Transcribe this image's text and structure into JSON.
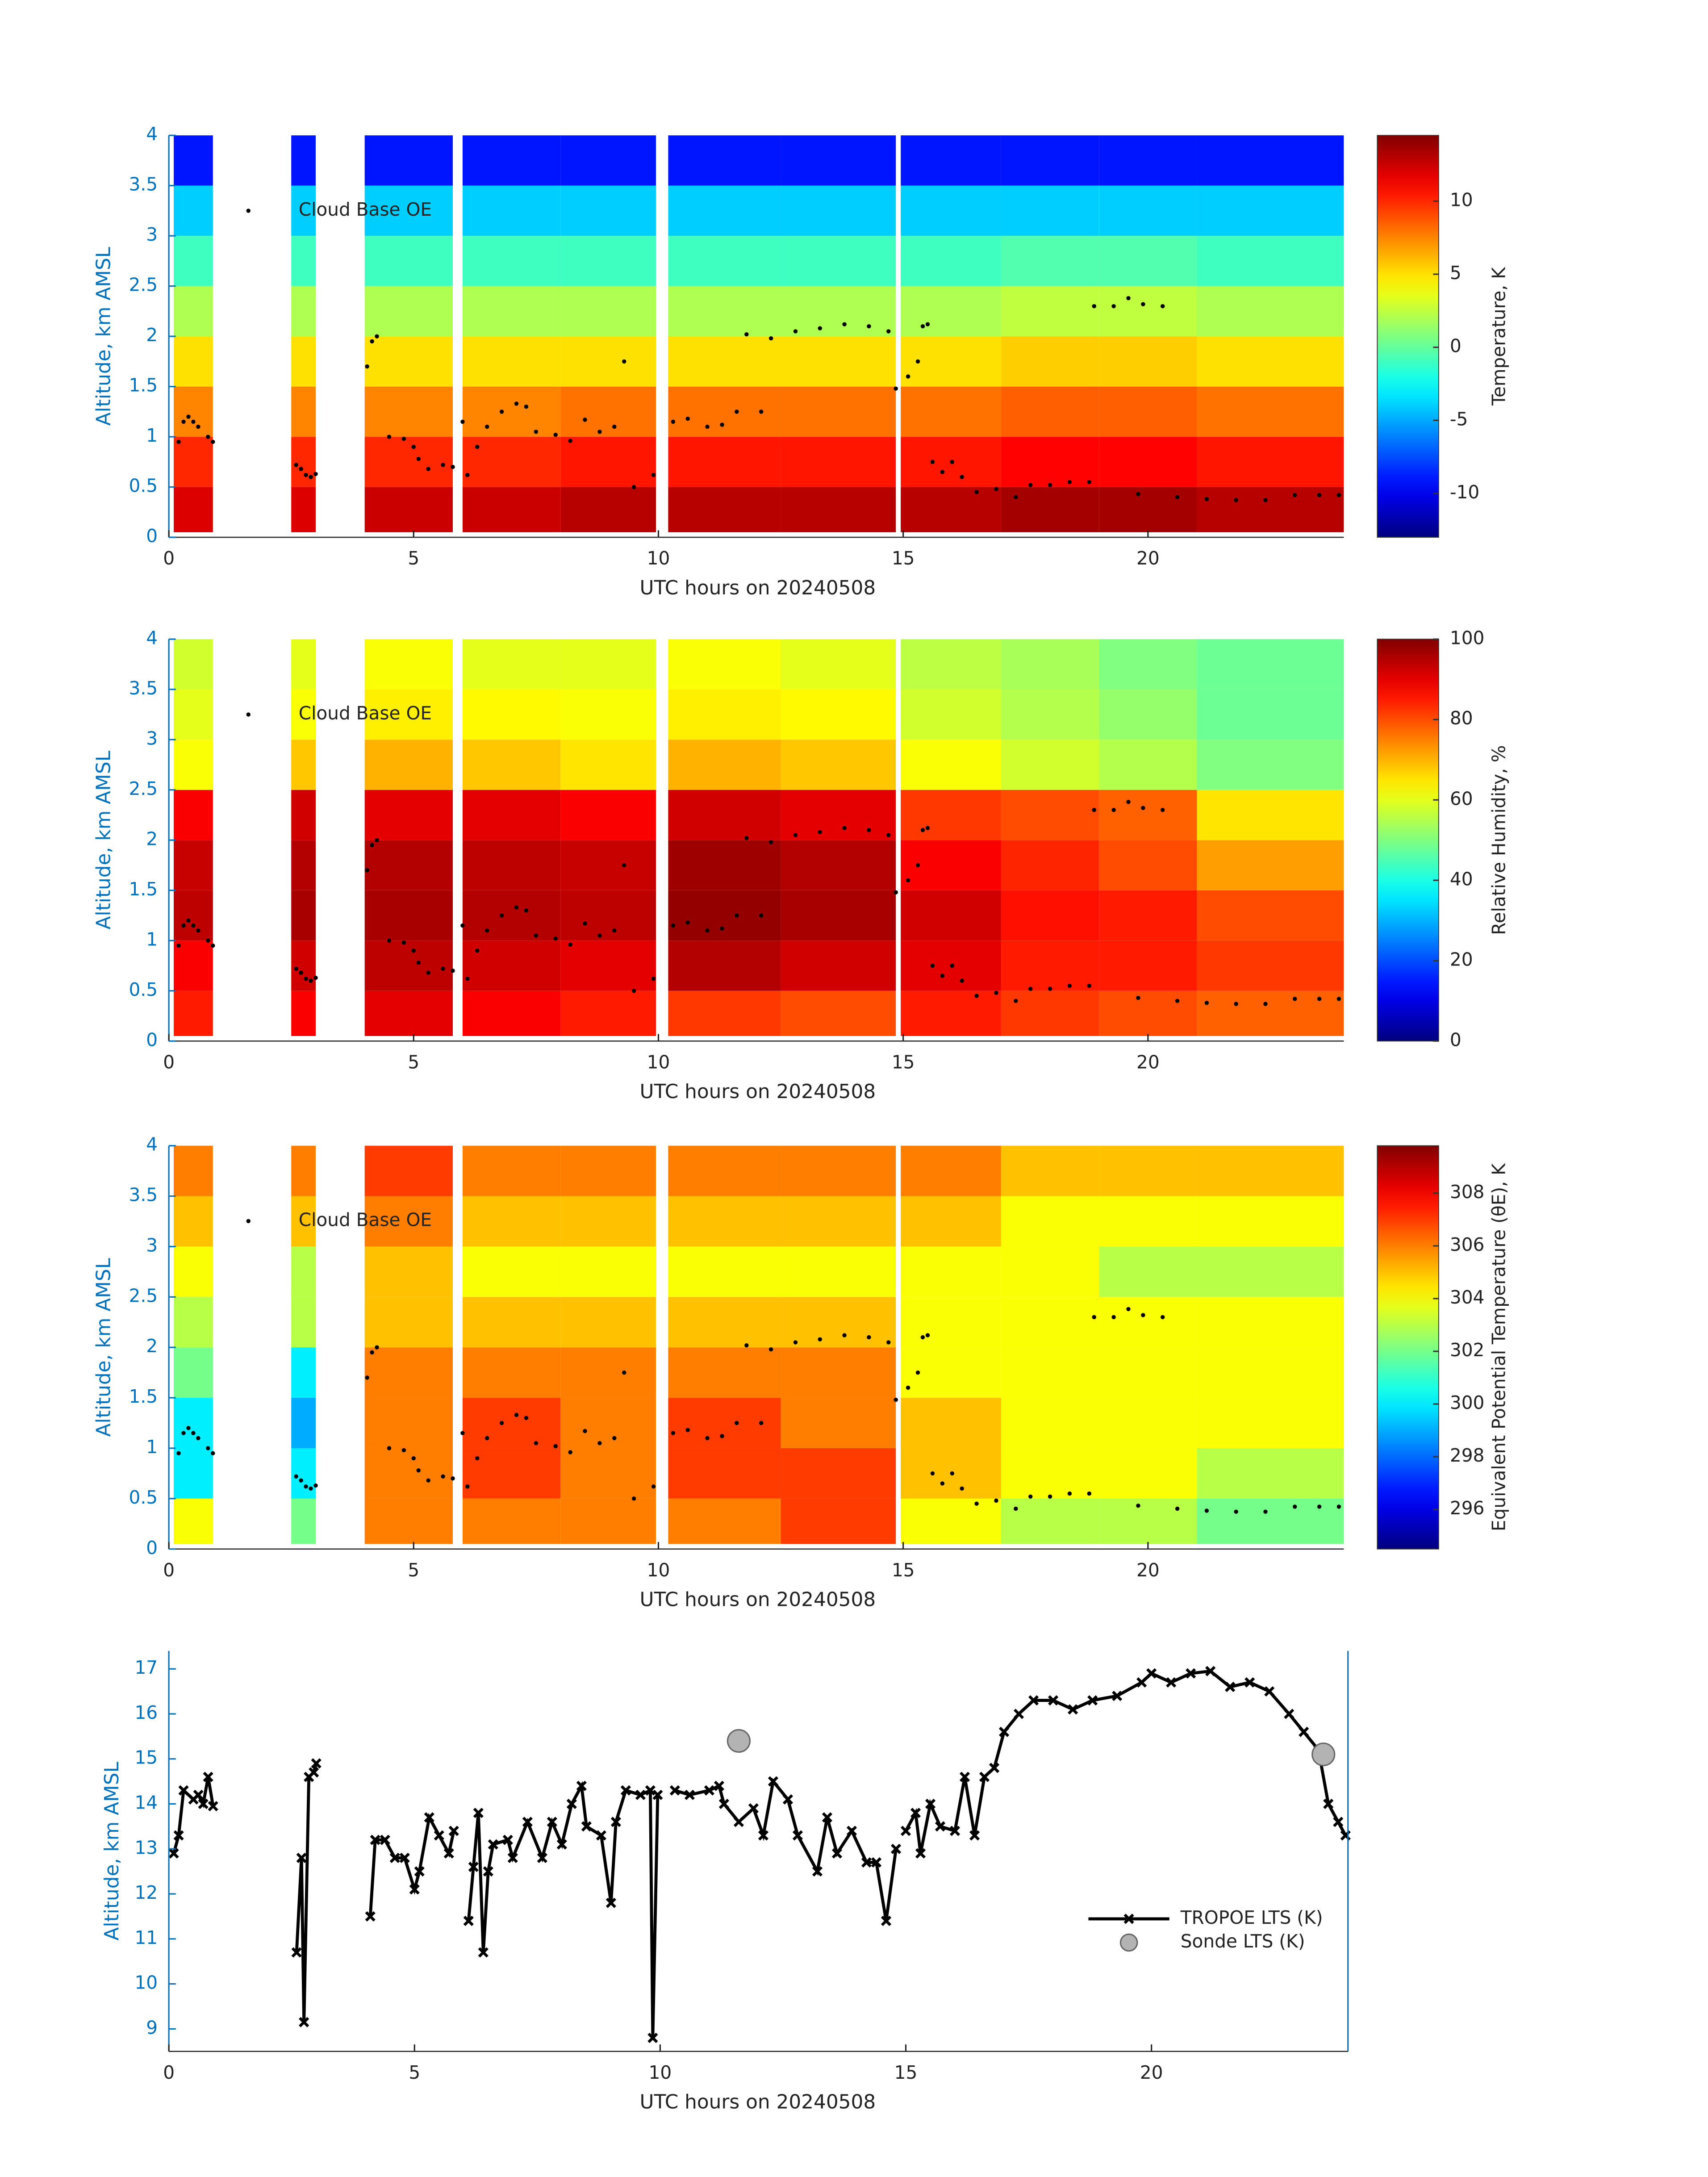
{
  "chart_data": [
    {
      "type": "heatmap",
      "xlabel": "UTC hours on 20240508",
      "ylabel": "Altitude, km AMSL",
      "colorbar_label": "Temperature, K",
      "xlim": [
        0,
        24
      ],
      "xticks": [
        0,
        5,
        10,
        15,
        20
      ],
      "ylim": [
        0,
        4
      ],
      "yticks": [
        0,
        0.5,
        1,
        1.5,
        2,
        2.5,
        3,
        3.5,
        4
      ],
      "clim": [
        -13,
        14.5
      ],
      "cticks": [
        -10,
        -5,
        0,
        5,
        10
      ],
      "x_edges": [
        0.1,
        0.9,
        2.5,
        3.0,
        4.0,
        5.8,
        6.0,
        8.0,
        9.95,
        10.2,
        12.5,
        14.85,
        14.95,
        17,
        19,
        21,
        24
      ],
      "y_edges": [
        0.05,
        0.5,
        1,
        1.5,
        2,
        2.5,
        3,
        3.5,
        4
      ],
      "z": [
        [
          12,
          null,
          12,
          null,
          12.5,
          null,
          12.5,
          13,
          null,
          13,
          13,
          null,
          13,
          13.5,
          13.5,
          13
        ],
        [
          10,
          null,
          10,
          null,
          10,
          null,
          10,
          10.5,
          null,
          10.5,
          10.5,
          null,
          10.5,
          11,
          11,
          10.5
        ],
        [
          7.5,
          null,
          7.5,
          null,
          7.5,
          null,
          7.5,
          8,
          null,
          8,
          8,
          null,
          8,
          8.5,
          8.5,
          8
        ],
        [
          5,
          null,
          5,
          null,
          5,
          null,
          5,
          5,
          null,
          5,
          5,
          null,
          5,
          5.5,
          5.5,
          5
        ],
        [
          2,
          null,
          2,
          null,
          2,
          null,
          2,
          2,
          null,
          2,
          2,
          null,
          2,
          2.5,
          2.5,
          2
        ],
        [
          -1,
          null,
          -1,
          null,
          -1,
          null,
          -1,
          -1,
          null,
          -1,
          -1,
          null,
          -1,
          -0.5,
          -0.5,
          -1
        ],
        [
          -4,
          null,
          -4,
          null,
          -4,
          null,
          -4,
          -4,
          null,
          -4,
          -4,
          null,
          -4,
          -4,
          -4,
          -4
        ],
        [
          -9,
          null,
          -9,
          null,
          -9,
          null,
          -9,
          -9,
          null,
          -9,
          -9,
          null,
          -9,
          -9,
          -9,
          -9
        ]
      ]
    },
    {
      "type": "heatmap",
      "xlabel": "UTC hours on 20240508",
      "ylabel": "Altitude, km AMSL",
      "colorbar_label": "Relative Humidity, %",
      "xlim": [
        0,
        24
      ],
      "xticks": [
        0,
        5,
        10,
        15,
        20
      ],
      "ylim": [
        0,
        4
      ],
      "yticks": [
        0,
        0.5,
        1,
        1.5,
        2,
        2.5,
        3,
        3.5,
        4
      ],
      "clim": [
        0,
        100
      ],
      "cticks": [
        0,
        20,
        40,
        60,
        80,
        100
      ],
      "x_edges": [
        0.1,
        0.9,
        2.5,
        3.0,
        4.0,
        5.8,
        6.0,
        8.0,
        9.95,
        10.2,
        12.5,
        14.85,
        14.95,
        17,
        19,
        21,
        24
      ],
      "y_edges": [
        0.05,
        0.5,
        1,
        1.5,
        2,
        2.5,
        3,
        3.5,
        4
      ],
      "z": [
        [
          85,
          null,
          88,
          null,
          90,
          null,
          88,
          85,
          null,
          82,
          80,
          null,
          85,
          82,
          80,
          78
        ],
        [
          88,
          null,
          92,
          null,
          94,
          null,
          92,
          90,
          null,
          95,
          92,
          null,
          90,
          85,
          85,
          82
        ],
        [
          94,
          null,
          96,
          null,
          96,
          null,
          95,
          94,
          null,
          98,
          96,
          null,
          92,
          86,
          85,
          80
        ],
        [
          93,
          null,
          95,
          null,
          95,
          null,
          94,
          93,
          null,
          97,
          95,
          null,
          88,
          84,
          80,
          72
        ],
        [
          88,
          null,
          92,
          null,
          90,
          null,
          90,
          88,
          null,
          92,
          90,
          null,
          82,
          80,
          78,
          65
        ],
        [
          62,
          null,
          68,
          null,
          70,
          null,
          68,
          65,
          null,
          70,
          68,
          null,
          62,
          58,
          55,
          50
        ],
        [
          60,
          null,
          62,
          null,
          64,
          null,
          63,
          62,
          null,
          64,
          63,
          null,
          58,
          55,
          52,
          48
        ],
        [
          58,
          null,
          60,
          null,
          62,
          null,
          60,
          60,
          null,
          62,
          60,
          null,
          56,
          54,
          50,
          48
        ]
      ]
    },
    {
      "type": "heatmap",
      "xlabel": "UTC hours on 20240508",
      "ylabel": "Altitude, km AMSL",
      "colorbar_label": "Equivalent Potential Temperature (θE), K",
      "xlim": [
        0,
        24
      ],
      "xticks": [
        0,
        5,
        10,
        15,
        20
      ],
      "ylim": [
        0,
        4
      ],
      "yticks": [
        0,
        0.5,
        1,
        1.5,
        2,
        2.5,
        3,
        3.5,
        4
      ],
      "clim": [
        294.5,
        309.8
      ],
      "cticks": [
        296,
        298,
        300,
        302,
        304,
        306,
        308
      ],
      "x_edges": [
        0.1,
        0.9,
        2.5,
        3.0,
        4.0,
        5.8,
        6.0,
        8.0,
        9.95,
        10.2,
        12.5,
        14.85,
        14.95,
        17,
        19,
        21,
        24
      ],
      "y_edges": [
        0.05,
        0.5,
        1,
        1.5,
        2,
        2.5,
        3,
        3.5,
        4
      ],
      "z": [
        [
          304,
          null,
          302,
          null,
          306,
          null,
          306,
          306,
          null,
          306,
          307,
          null,
          304,
          303,
          303,
          302
        ],
        [
          300,
          null,
          300,
          null,
          306,
          null,
          307,
          306,
          null,
          307,
          307,
          null,
          305,
          304,
          304,
          303
        ],
        [
          300,
          null,
          299,
          null,
          306,
          null,
          307,
          306,
          null,
          307,
          306,
          null,
          305,
          304,
          304,
          304
        ],
        [
          302,
          null,
          300,
          null,
          306,
          null,
          306,
          306,
          null,
          306,
          306,
          null,
          304,
          304,
          304,
          304
        ],
        [
          303,
          null,
          303,
          null,
          305,
          null,
          305,
          305,
          null,
          305,
          305,
          null,
          304,
          304,
          304,
          304
        ],
        [
          304,
          null,
          303,
          null,
          305,
          null,
          304,
          304,
          null,
          304,
          304,
          null,
          304,
          304,
          303,
          303
        ],
        [
          305,
          null,
          305,
          null,
          306,
          null,
          305,
          305,
          null,
          305,
          305,
          null,
          305,
          304,
          304,
          304
        ],
        [
          306,
          null,
          306,
          null,
          307,
          null,
          306,
          306,
          null,
          306,
          306,
          null,
          306,
          305,
          305,
          305
        ]
      ]
    },
    {
      "type": "line",
      "xlabel": "UTC hours on 20240508",
      "ylabel": "Altitude, km AMSL",
      "legend": "southeast",
      "xlim": [
        0,
        24
      ],
      "xticks": [
        0,
        5,
        10,
        15,
        20
      ],
      "ylim": [
        8.5,
        17.4
      ],
      "yticks": [
        9,
        10,
        11,
        12,
        13,
        14,
        15,
        16,
        17
      ],
      "series": [
        {
          "name": "TROPOE LTS (K)",
          "color": "#000000",
          "x": [
            0.1,
            0.2,
            0.3,
            0.5,
            0.6,
            0.7,
            0.8,
            0.9,
            null,
            2.6,
            2.7,
            2.75,
            2.85,
            2.95,
            3.0,
            null,
            4.1,
            4.2,
            4.4,
            4.6,
            4.8,
            5.0,
            5.1,
            5.3,
            5.5,
            5.7,
            5.8,
            null,
            6.1,
            6.2,
            6.3,
            6.4,
            6.5,
            6.6,
            6.9,
            7.0,
            7.3,
            7.6,
            7.8,
            8.0,
            8.2,
            8.4,
            8.5,
            8.8,
            9.0,
            9.1,
            9.3,
            9.6,
            9.8,
            9.85,
            9.95,
            null,
            10.3,
            10.6,
            11.0,
            11.2,
            11.3,
            11.6,
            11.9,
            12.1,
            12.3,
            12.6,
            12.8,
            13.2,
            13.4,
            13.6,
            13.9,
            14.2,
            14.4,
            14.6,
            14.8,
            null,
            15.0,
            15.2,
            15.3,
            15.5,
            15.7,
            16.0,
            16.2,
            16.4,
            16.6,
            16.8,
            17.0,
            17.3,
            17.6,
            18.0,
            18.4,
            18.8,
            19.3,
            19.8,
            20.0,
            20.4,
            20.8,
            21.2,
            21.6,
            22.0,
            22.4,
            22.8,
            23.1,
            23.4,
            23.6,
            23.8,
            23.95
          ],
          "values": [
            12.9,
            13.3,
            14.3,
            14.1,
            14.2,
            14.0,
            14.6,
            13.95,
            null,
            10.7,
            12.8,
            9.15,
            14.6,
            14.7,
            14.9,
            null,
            11.5,
            13.2,
            13.2,
            12.8,
            12.8,
            12.1,
            12.5,
            13.7,
            13.3,
            12.9,
            13.4,
            null,
            11.4,
            12.6,
            13.8,
            10.7,
            12.5,
            13.1,
            13.2,
            12.8,
            13.6,
            12.8,
            13.6,
            13.1,
            14.0,
            14.4,
            13.5,
            13.3,
            11.8,
            13.6,
            14.3,
            14.2,
            14.3,
            8.8,
            14.2,
            null,
            14.3,
            14.2,
            14.3,
            14.4,
            14.0,
            13.6,
            13.9,
            13.3,
            14.5,
            14.1,
            13.3,
            12.5,
            13.7,
            12.9,
            13.4,
            12.7,
            12.7,
            11.4,
            13.0,
            null,
            13.4,
            13.8,
            12.9,
            14.0,
            13.5,
            13.4,
            14.6,
            13.3,
            14.6,
            14.8,
            15.6,
            16.0,
            16.3,
            16.3,
            16.1,
            16.3,
            16.4,
            16.7,
            16.9,
            16.7,
            16.9,
            16.95,
            16.6,
            16.7,
            16.5,
            16.0,
            15.6,
            15.2,
            14.0,
            13.6,
            13.3
          ]
        },
        {
          "name": "Sonde LTS (K)",
          "color": "#b3b3b3",
          "x": [
            11.6,
            23.5
          ],
          "values": [
            15.4,
            15.1
          ]
        }
      ]
    }
  ],
  "cloud_base": {
    "name": "Cloud Base OE",
    "x": [
      0.2,
      0.3,
      0.4,
      0.5,
      0.6,
      0.8,
      0.9,
      2.6,
      2.7,
      2.8,
      2.9,
      3.0,
      4.05,
      4.15,
      4.25,
      4.5,
      4.8,
      5.0,
      5.1,
      5.3,
      5.6,
      5.8,
      6.0,
      6.1,
      6.3,
      6.5,
      6.8,
      7.1,
      7.3,
      7.5,
      7.9,
      8.2,
      8.5,
      8.8,
      9.1,
      9.3,
      9.5,
      9.9,
      10.3,
      10.6,
      11.0,
      11.3,
      11.6,
      11.8,
      12.1,
      12.3,
      12.8,
      13.3,
      13.8,
      14.3,
      14.7,
      14.85,
      15.1,
      15.3,
      15.4,
      15.5,
      15.6,
      15.8,
      16.0,
      16.2,
      16.5,
      16.9,
      17.3,
      17.6,
      18.0,
      18.4,
      18.8,
      18.9,
      19.3,
      19.6,
      19.9,
      20.3,
      19.8,
      20.6,
      21.2,
      21.8,
      22.4,
      23.0,
      23.5,
      23.9
    ],
    "y": [
      0.95,
      1.15,
      1.2,
      1.15,
      1.1,
      1.0,
      0.95,
      0.72,
      0.68,
      0.62,
      0.6,
      0.63,
      1.7,
      1.95,
      2.0,
      1.0,
      0.98,
      0.9,
      0.78,
      0.68,
      0.72,
      0.7,
      1.15,
      0.62,
      0.9,
      1.1,
      1.25,
      1.33,
      1.3,
      1.05,
      1.02,
      0.96,
      1.17,
      1.05,
      1.1,
      1.75,
      0.5,
      0.62,
      1.15,
      1.18,
      1.1,
      1.12,
      1.25,
      2.02,
      1.25,
      1.98,
      2.05,
      2.08,
      2.12,
      2.1,
      2.05,
      1.48,
      1.6,
      1.75,
      2.1,
      2.12,
      0.75,
      0.65,
      0.75,
      0.6,
      0.45,
      0.48,
      0.4,
      0.52,
      0.52,
      0.55,
      0.55,
      2.3,
      2.3,
      2.38,
      2.32,
      2.3,
      0.43,
      0.4,
      0.38,
      0.37,
      0.37,
      0.42,
      0.42,
      0.42
    ]
  }
}
